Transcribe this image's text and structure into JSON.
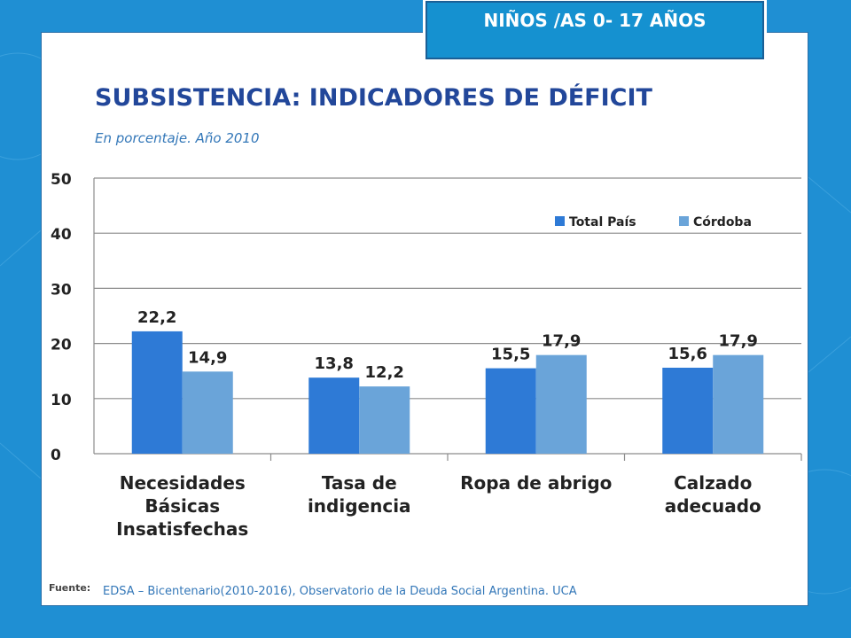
{
  "tab": {
    "label": "NIÑOS /AS 0- 17 AÑOS"
  },
  "header": {
    "title": "SUBSISTENCIA: INDICADORES DE DÉFICIT",
    "subtitle": "En porcentaje. Año 2010"
  },
  "footer": {
    "source_label": "Fuente:",
    "source_text": "EDSA – Bicentenario(2010-2016), Observatorio de la Deuda Social Argentina. UCA"
  },
  "colors": {
    "background": "#1f8fd3",
    "title": "#22479a",
    "total_pais": "#2e7ad6",
    "cordoba": "#6aa4d9"
  },
  "chart_data": {
    "type": "bar",
    "categories": [
      [
        "Necesidades",
        "Básicas",
        "Insatisfechas"
      ],
      [
        "Tasa de",
        "indigencia"
      ],
      [
        "Ropa de abrigo"
      ],
      [
        "Calzado",
        "adecuado"
      ]
    ],
    "series": [
      {
        "name": "Total País",
        "values": [
          22.2,
          13.8,
          15.5,
          15.6
        ],
        "labels": [
          "22,2",
          "13,8",
          "15,5",
          "15,6"
        ],
        "color": "#2e7ad6"
      },
      {
        "name": "Córdoba",
        "values": [
          14.9,
          12.2,
          17.9,
          17.9
        ],
        "labels": [
          "14,9",
          "12,2",
          "17,9",
          "17,9"
        ],
        "color": "#6aa4d9"
      }
    ],
    "y_ticks": [
      "0",
      "10",
      "20",
      "30",
      "40",
      "50"
    ],
    "ylim": [
      0,
      50
    ],
    "grid": true,
    "legend_position": "top-right"
  }
}
